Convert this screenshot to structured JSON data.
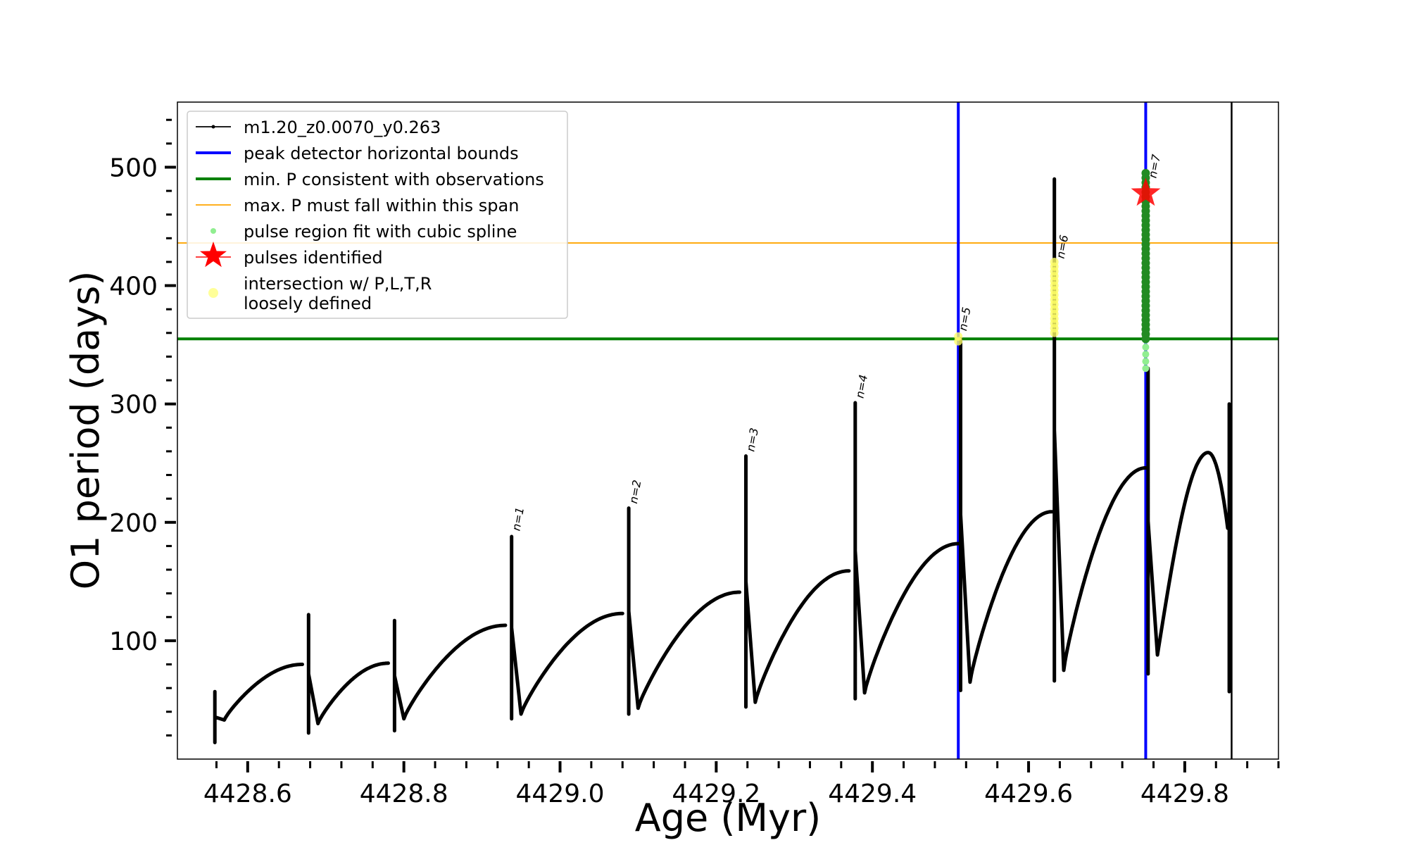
{
  "chart_data": {
    "type": "line",
    "xlabel": "Age (Myr)",
    "ylabel": "O1 period (days)",
    "xlim": [
      4428.51,
      4429.92
    ],
    "ylim": [
      0,
      555
    ],
    "x_ticks": [
      4428.6,
      4428.8,
      4429.0,
      4429.2,
      4429.4,
      4429.6,
      4429.8
    ],
    "x_tick_labels": [
      "4428.6",
      "4428.8",
      "4429.0",
      "4429.2",
      "4429.4",
      "4429.6",
      "4429.8"
    ],
    "y_ticks": [
      100,
      200,
      300,
      400,
      500
    ],
    "y_tick_labels": [
      "100",
      "200",
      "300",
      "400",
      "500"
    ],
    "x_minor_step": 0.04,
    "y_minor_step": 20,
    "legend": {
      "position": "upper-left",
      "entries": [
        {
          "label": "m1.20_z0.0070_y0.263",
          "color": "#000000",
          "kind": "line-marker"
        },
        {
          "label": "peak detector horizontal bounds",
          "color": "#0000ff",
          "kind": "line"
        },
        {
          "label": "min. P consistent with observations",
          "color": "#008000",
          "kind": "line"
        },
        {
          "label": "max. P must fall within this span",
          "color": "#ffa500",
          "kind": "thin-line"
        },
        {
          "label": "pulse region fit with cubic spline",
          "color": "#90ee90",
          "kind": "dot"
        },
        {
          "label": "pulses identified",
          "color": "#ff0000",
          "kind": "star"
        },
        {
          "label": "intersection w/ P,L,T,R\nloosely defined",
          "color": "#ffff99",
          "kind": "dot"
        }
      ]
    },
    "hlines": [
      {
        "name": "min-period",
        "y": 355,
        "color": "#008000"
      },
      {
        "name": "max-period",
        "y": 436,
        "color": "#ffa500"
      }
    ],
    "vlines": [
      {
        "name": "peak-bound-left",
        "x": 4429.51,
        "color": "#0000ff"
      },
      {
        "name": "peak-bound-right",
        "x": 4429.75,
        "color": "#0000ff"
      },
      {
        "name": "model-end",
        "x": 4429.86,
        "color": "#000000"
      }
    ],
    "segments": [
      {
        "x0": 4428.57,
        "y0": 33,
        "x1": 4428.67,
        "ymax": 80,
        "spike_min": 14,
        "spike_max": 57
      },
      {
        "x0": 4428.69,
        "y0": 30,
        "x1": 4428.78,
        "ymax": 81,
        "spike_min": 22,
        "spike_max": 122
      },
      {
        "x0": 4428.8,
        "y0": 34,
        "x1": 4428.93,
        "ymax": 113,
        "spike_min": 24,
        "spike_max": 117
      },
      {
        "x0": 4428.95,
        "y0": 38,
        "x1": 4429.08,
        "ymax": 123,
        "spike_min": 34,
        "spike_max": 188
      },
      {
        "x0": 4429.1,
        "y0": 43,
        "x1": 4429.23,
        "ymax": 141,
        "spike_min": 38,
        "spike_max": 212
      },
      {
        "x0": 4429.25,
        "y0": 48,
        "x1": 4429.37,
        "ymax": 159,
        "spike_min": 44,
        "spike_max": 256
      },
      {
        "x0": 4429.39,
        "y0": 56,
        "x1": 4429.51,
        "ymax": 182,
        "spike_min": 51,
        "spike_max": 301
      },
      {
        "x0": 4429.525,
        "y0": 65,
        "x1": 4429.63,
        "ymax": 209,
        "spike_min": 58,
        "spike_max": 355
      },
      {
        "x0": 4429.645,
        "y0": 75,
        "x1": 4429.75,
        "ymax": 246,
        "spike_min": 66,
        "spike_max": 490
      },
      {
        "x0": 4429.765,
        "y0": 88,
        "x1": 4429.855,
        "ymax": 259,
        "spike_min": 72,
        "spike_max": 330,
        "peak_x": 4429.83
      }
    ],
    "final_spike": {
      "x": 4429.857,
      "y_min": 57,
      "y_max": 300
    },
    "pulse_labels": [
      {
        "text": "n=1",
        "x": 4428.943,
        "y": 190
      },
      {
        "text": "n=2",
        "x": 4429.093,
        "y": 213
      },
      {
        "text": "n=3",
        "x": 4429.243,
        "y": 257
      },
      {
        "text": "n=4",
        "x": 4429.383,
        "y": 302
      },
      {
        "text": "n=5",
        "x": 4429.515,
        "y": 359
      },
      {
        "text": "n=6",
        "x": 4429.64,
        "y": 420
      },
      {
        "text": "n=7",
        "x": 4429.758,
        "y": 488
      }
    ],
    "cubic_spline_points": {
      "x": 4429.75,
      "y_from": 330,
      "y_to": 496
    },
    "loose_points": [
      {
        "x": 4429.51,
        "y_from": 353,
        "y_to": 357
      },
      {
        "x": 4429.633,
        "y_from": 360,
        "y_to": 421
      }
    ],
    "identified_points": {
      "x": 4429.75,
      "y_from": 355,
      "y_to": 496
    },
    "pulse_star": {
      "x": 4429.75,
      "y": 478
    }
  }
}
